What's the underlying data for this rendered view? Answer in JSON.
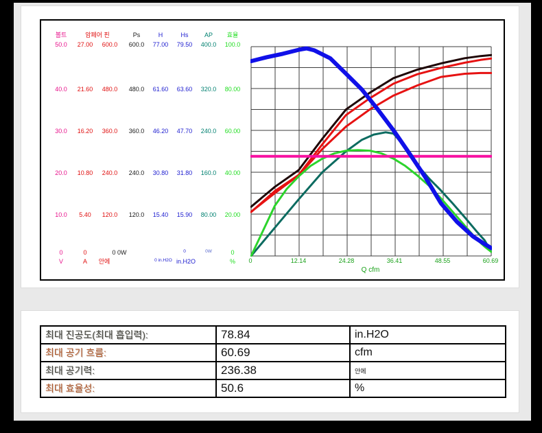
{
  "chart": {
    "xlabel": "Q  cfm",
    "x_ticks": [
      "0",
      "12.14",
      "24.28",
      "36.41",
      "48.55",
      "60.69"
    ],
    "axis_columns": [
      {
        "header": "볼트",
        "color": "#e8138c",
        "values": [
          "50.0",
          "40.0",
          "30.0",
          "20.0",
          "10.0"
        ],
        "zero": "0",
        "unit": "V"
      },
      {
        "header": "암페어 핀",
        "color": "#e01010",
        "values": [
          "27.00",
          "21.60",
          "16.20",
          "10.80",
          "5.40"
        ],
        "zero": "0",
        "unit": "A"
      },
      {
        "header": "",
        "color": "#e01010",
        "values": [
          "600.0",
          "480.0",
          "360.0",
          "240.0",
          "120.0"
        ],
        "zero": "0 0W",
        "zero_color": "#1a1a1a",
        "unit": "안에"
      },
      {
        "header": "Ps",
        "color": "#1a1a1a",
        "values": [
          "600.0",
          "480.0",
          "360.0",
          "240.0",
          "120.0"
        ]
      },
      {
        "header": "H",
        "color": "#2020d0",
        "values": [
          "77.00",
          "61.60",
          "46.20",
          "30.80",
          "15.40"
        ],
        "unit": "0 in.H2O",
        "unit_small": true
      },
      {
        "header": "Hs",
        "color": "#2020d0",
        "values": [
          "79.50",
          "63.60",
          "47.70",
          "31.80",
          "15.90"
        ],
        "zero": "0",
        "zero_small": true,
        "unit": "in.H2O"
      },
      {
        "header": "AP",
        "color": "#008070",
        "values": [
          "400.0",
          "320.0",
          "240.0",
          "160.0",
          "80.00"
        ],
        "zero": "0W",
        "zero_small": true,
        "zero_color": "#5566cc"
      },
      {
        "header": "효율",
        "color": "#1edd1e",
        "values": [
          "100.0",
          "80.00",
          "60.00",
          "40.00",
          "20.00"
        ],
        "zero": "0",
        "unit": "%"
      }
    ]
  },
  "chart_data": {
    "type": "line",
    "title": "",
    "xlabel": "Q cfm",
    "ylabel": "multi-axis: V / A / W / in.H2O / %",
    "x_range": [
      0,
      60.69
    ],
    "x_tick_values": [
      0,
      12.14,
      24.28,
      36.41,
      48.55,
      60.69
    ],
    "grid": "10x10",
    "series": [
      {
        "name": "Ps-power-W",
        "color": "#1e0606",
        "width": 3,
        "axis_max": 600,
        "points": [
          [
            0,
            141
          ],
          [
            6,
            198
          ],
          [
            12,
            246
          ],
          [
            18,
            336
          ],
          [
            24,
            420
          ],
          [
            30,
            468
          ],
          [
            36,
            510
          ],
          [
            42,
            534
          ],
          [
            48,
            552
          ],
          [
            54,
            567
          ],
          [
            58,
            573
          ],
          [
            60.69,
            576
          ]
        ]
      },
      {
        "name": "input-power-W",
        "color": "#e61212",
        "width": 3,
        "axis_max": 600,
        "points": [
          [
            0,
            126
          ],
          [
            6,
            186
          ],
          [
            12,
            232
          ],
          [
            18,
            320
          ],
          [
            24,
            404
          ],
          [
            30,
            452
          ],
          [
            36,
            494
          ],
          [
            42,
            521
          ],
          [
            48,
            539
          ],
          [
            54,
            554
          ],
          [
            58,
            562
          ],
          [
            60.69,
            566
          ]
        ]
      },
      {
        "name": "current-A",
        "color": "#e61212",
        "width": 3,
        "axis_max": 27,
        "points": [
          [
            0,
            5.7
          ],
          [
            6,
            8.1
          ],
          [
            12,
            10.4
          ],
          [
            18,
            13.8
          ],
          [
            24,
            16.7
          ],
          [
            30,
            18.9
          ],
          [
            36,
            20.7
          ],
          [
            42,
            22
          ],
          [
            48,
            23.1
          ],
          [
            54,
            23.5
          ],
          [
            58,
            23.6
          ],
          [
            60.69,
            23.6
          ]
        ]
      },
      {
        "name": "air-power-AP-W",
        "color": "#0c6b60",
        "width": 3,
        "axis_max": 400,
        "points": [
          [
            0,
            0
          ],
          [
            6,
            54
          ],
          [
            12,
            108
          ],
          [
            18,
            160
          ],
          [
            24,
            200
          ],
          [
            28,
            222
          ],
          [
            31,
            232
          ],
          [
            34,
            236.38
          ],
          [
            36,
            234
          ],
          [
            38,
            216
          ],
          [
            40,
            192
          ],
          [
            42,
            174
          ],
          [
            45,
            148
          ],
          [
            48,
            125
          ],
          [
            51,
            100
          ],
          [
            54,
            74
          ],
          [
            57,
            47
          ],
          [
            59,
            30
          ],
          [
            60.69,
            8
          ]
        ]
      },
      {
        "name": "efficiency-pct",
        "color": "#2cd42c",
        "width": 3,
        "axis_max": 100,
        "points": [
          [
            0,
            0
          ],
          [
            3,
            12
          ],
          [
            6,
            24
          ],
          [
            9,
            32
          ],
          [
            12,
            38
          ],
          [
            15,
            43
          ],
          [
            18,
            46.5
          ],
          [
            21,
            49
          ],
          [
            24,
            50.3
          ],
          [
            27,
            50.6
          ],
          [
            30,
            50.3
          ],
          [
            33,
            49
          ],
          [
            36,
            46.5
          ],
          [
            39,
            43
          ],
          [
            42,
            38.5
          ],
          [
            45,
            33.5
          ],
          [
            48,
            27.5
          ],
          [
            51,
            21
          ],
          [
            54,
            14.5
          ],
          [
            57,
            8
          ],
          [
            59,
            4.5
          ],
          [
            60.69,
            2
          ]
        ]
      },
      {
        "name": "voltage-V",
        "color": "#f711a1",
        "width": 4,
        "axis_max": 50,
        "points": [
          [
            0,
            23.8
          ],
          [
            60.69,
            23.8
          ]
        ]
      },
      {
        "name": "vacuum-Hs-inH2O",
        "color": "#1010e8",
        "width": 6,
        "axis_max": 79.5,
        "points": [
          [
            0,
            74
          ],
          [
            4,
            75.5
          ],
          [
            8,
            76.8
          ],
          [
            12,
            78.3
          ],
          [
            14,
            78.84
          ],
          [
            16,
            78.1
          ],
          [
            20,
            75.1
          ],
          [
            24,
            69.2
          ],
          [
            28,
            63.2
          ],
          [
            32,
            55.7
          ],
          [
            36,
            47.7
          ],
          [
            40,
            39
          ],
          [
            44,
            30
          ],
          [
            48,
            20
          ],
          [
            52,
            13
          ],
          [
            56,
            7.5
          ],
          [
            58.5,
            5
          ],
          [
            60.69,
            3
          ]
        ]
      }
    ]
  },
  "results_table": {
    "rows": [
      {
        "label": "최대 진공도(최대 흡입력):",
        "value": "78.84",
        "unit": "in.H2O",
        "label_style": "dark",
        "unit_small": false
      },
      {
        "label": "최대 공기 흐름:",
        "value": "60.69",
        "unit": "cfm",
        "label_style": "orange",
        "unit_small": false
      },
      {
        "label": "최대 공기력:",
        "value": "236.38",
        "unit": "안에",
        "label_style": "dark",
        "unit_small": true
      },
      {
        "label": "최대 효율성:",
        "value": "50.6",
        "unit": "%",
        "label_style": "orange",
        "unit_small": false
      }
    ]
  }
}
